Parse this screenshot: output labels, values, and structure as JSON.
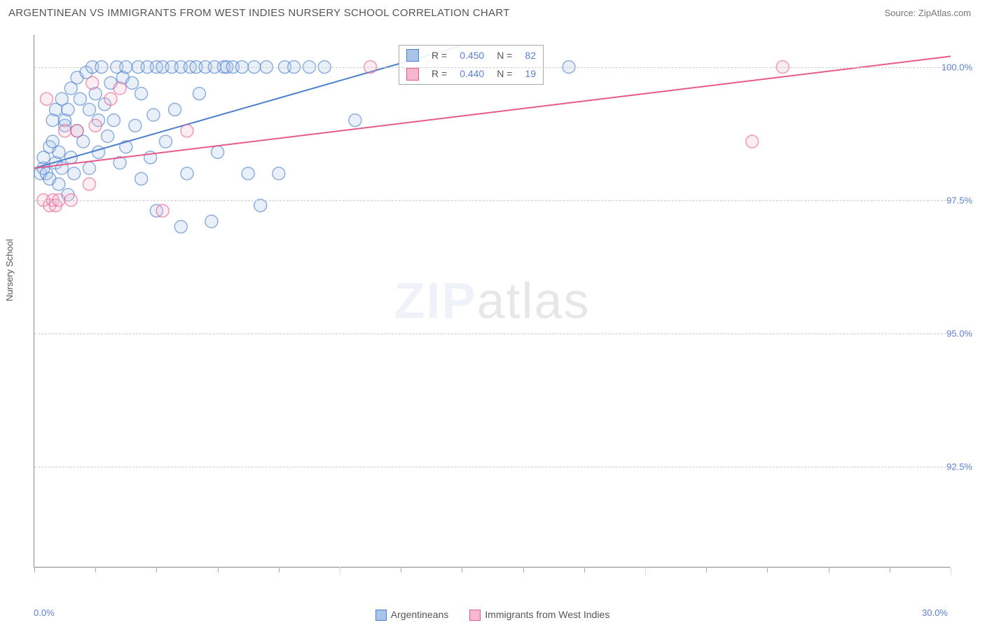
{
  "title": "ARGENTINEAN VS IMMIGRANTS FROM WEST INDIES NURSERY SCHOOL CORRELATION CHART",
  "source": "Source: ZipAtlas.com",
  "ylabel": "Nursery School",
  "watermark_left": "ZIP",
  "watermark_right": "atlas",
  "chart": {
    "type": "scatter",
    "xlim": [
      0,
      30
    ],
    "ylim": [
      90.6,
      100.6
    ],
    "x_ticks_minor_step": 2,
    "x_ticks_major": [
      0,
      10,
      20,
      30
    ],
    "x_tick_labels": {
      "0": "0.0%",
      "30": "30.0%"
    },
    "y_gridlines": [
      92.5,
      95.0,
      97.5,
      100.0
    ],
    "y_tick_labels": [
      "92.5%",
      "95.0%",
      "97.5%",
      "100.0%"
    ],
    "background_color": "#ffffff",
    "grid_color": "#cccccc",
    "axis_color": "#888888",
    "tick_label_color": "#5b7fd1",
    "marker_radius": 9,
    "marker_fill_opacity": 0.25,
    "marker_stroke_width": 1.5,
    "line_width": 2
  },
  "series": [
    {
      "name": "Argentineans",
      "color_stroke": "#4a7fc9",
      "color_fill": "#a8c4e8",
      "R": "0.450",
      "N": "82",
      "trend": {
        "x1": 0,
        "y1": 98.1,
        "x2": 14,
        "y2": 100.4
      },
      "points": [
        [
          0.2,
          98.0
        ],
        [
          0.3,
          98.1
        ],
        [
          0.3,
          98.3
        ],
        [
          0.4,
          98.0
        ],
        [
          0.5,
          97.9
        ],
        [
          0.5,
          98.5
        ],
        [
          0.6,
          98.6
        ],
        [
          0.6,
          99.0
        ],
        [
          0.7,
          99.2
        ],
        [
          0.7,
          98.2
        ],
        [
          0.8,
          97.8
        ],
        [
          0.8,
          98.4
        ],
        [
          0.9,
          99.4
        ],
        [
          0.9,
          98.1
        ],
        [
          1.0,
          98.9
        ],
        [
          1.0,
          99.0
        ],
        [
          1.1,
          97.6
        ],
        [
          1.1,
          99.2
        ],
        [
          1.2,
          99.6
        ],
        [
          1.2,
          98.3
        ],
        [
          1.3,
          98.0
        ],
        [
          1.4,
          98.8
        ],
        [
          1.4,
          99.8
        ],
        [
          1.5,
          99.4
        ],
        [
          1.6,
          98.6
        ],
        [
          1.7,
          99.9
        ],
        [
          1.8,
          98.1
        ],
        [
          1.8,
          99.2
        ],
        [
          1.9,
          100.0
        ],
        [
          2.0,
          99.5
        ],
        [
          2.1,
          99.0
        ],
        [
          2.1,
          98.4
        ],
        [
          2.2,
          100.0
        ],
        [
          2.3,
          99.3
        ],
        [
          2.4,
          98.7
        ],
        [
          2.5,
          99.7
        ],
        [
          2.6,
          99.0
        ],
        [
          2.7,
          100.0
        ],
        [
          2.8,
          98.2
        ],
        [
          2.9,
          99.8
        ],
        [
          3.0,
          98.5
        ],
        [
          3.0,
          100.0
        ],
        [
          3.2,
          99.7
        ],
        [
          3.3,
          98.9
        ],
        [
          3.4,
          100.0
        ],
        [
          3.5,
          97.9
        ],
        [
          3.5,
          99.5
        ],
        [
          3.7,
          100.0
        ],
        [
          3.8,
          98.3
        ],
        [
          3.9,
          99.1
        ],
        [
          4.0,
          100.0
        ],
        [
          4.0,
          97.3
        ],
        [
          4.2,
          100.0
        ],
        [
          4.3,
          98.6
        ],
        [
          4.5,
          100.0
        ],
        [
          4.6,
          99.2
        ],
        [
          4.8,
          100.0
        ],
        [
          4.8,
          97.0
        ],
        [
          5.0,
          98.0
        ],
        [
          5.1,
          100.0
        ],
        [
          5.3,
          100.0
        ],
        [
          5.4,
          99.5
        ],
        [
          5.6,
          100.0
        ],
        [
          5.8,
          97.1
        ],
        [
          5.9,
          100.0
        ],
        [
          6.0,
          98.4
        ],
        [
          6.2,
          100.0
        ],
        [
          6.3,
          100.0
        ],
        [
          6.5,
          100.0
        ],
        [
          6.8,
          100.0
        ],
        [
          7.0,
          98.0
        ],
        [
          7.2,
          100.0
        ],
        [
          7.4,
          97.4
        ],
        [
          7.6,
          100.0
        ],
        [
          8.0,
          98.0
        ],
        [
          8.2,
          100.0
        ],
        [
          8.5,
          100.0
        ],
        [
          9.0,
          100.0
        ],
        [
          9.5,
          100.0
        ],
        [
          10.5,
          99.0
        ],
        [
          13.0,
          100.0
        ],
        [
          17.5,
          100.0
        ]
      ]
    },
    {
      "name": "Immigrants from West Indies",
      "color_stroke": "#e85a8a",
      "color_fill": "#f5b8cf",
      "R": "0.440",
      "N": "19",
      "trend": {
        "x1": 0,
        "y1": 98.1,
        "x2": 30,
        "y2": 100.2
      },
      "points": [
        [
          0.3,
          97.5
        ],
        [
          0.4,
          99.4
        ],
        [
          0.5,
          97.4
        ],
        [
          0.6,
          97.5
        ],
        [
          0.7,
          97.4
        ],
        [
          0.8,
          97.5
        ],
        [
          1.0,
          98.8
        ],
        [
          1.2,
          97.5
        ],
        [
          1.4,
          98.8
        ],
        [
          1.8,
          97.8
        ],
        [
          1.9,
          99.7
        ],
        [
          2.0,
          98.9
        ],
        [
          2.5,
          99.4
        ],
        [
          2.8,
          99.6
        ],
        [
          4.2,
          97.3
        ],
        [
          5.0,
          98.8
        ],
        [
          11.0,
          100.0
        ],
        [
          23.5,
          98.6
        ],
        [
          24.5,
          100.0
        ]
      ]
    }
  ],
  "legend_labels": {
    "R": "R =",
    "N": "N ="
  }
}
